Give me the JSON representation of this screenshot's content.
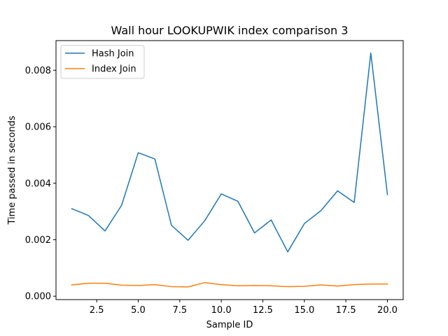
{
  "chart_data": {
    "type": "line",
    "title": "Wall hour LOOKUPWIK index comparison 3",
    "xlabel": "Sample ID",
    "ylabel": "Time passed in seconds",
    "xlim": [
      0.05,
      20.95
    ],
    "ylim": [
      -0.00012,
      0.00905
    ],
    "xticks": [
      2.5,
      5.0,
      7.5,
      10.0,
      12.5,
      15.0,
      17.5,
      20.0
    ],
    "xtick_labels": [
      "2.5",
      "5.0",
      "7.5",
      "10.0",
      "12.5",
      "15.0",
      "17.5",
      "20.0"
    ],
    "yticks": [
      0.0,
      0.002,
      0.004,
      0.006,
      0.008
    ],
    "ytick_labels": [
      "0.000",
      "0.002",
      "0.004",
      "0.006",
      "0.008"
    ],
    "grid": false,
    "legend_position": "top-left",
    "x": [
      1,
      2,
      3,
      4,
      5,
      6,
      7,
      8,
      9,
      10,
      11,
      12,
      13,
      14,
      15,
      16,
      17,
      18,
      19,
      20
    ],
    "series": [
      {
        "name": "Hash Join",
        "color": "#1f77b4",
        "values": [
          0.0031,
          0.00286,
          0.00231,
          0.00322,
          0.00508,
          0.00486,
          0.00251,
          0.00198,
          0.00267,
          0.00362,
          0.00336,
          0.00224,
          0.0027,
          0.00157,
          0.00257,
          0.00303,
          0.00373,
          0.00332,
          0.00861,
          0.0036
        ]
      },
      {
        "name": "Index Join",
        "color": "#ff7f0e",
        "values": [
          0.0004,
          0.00046,
          0.00046,
          0.00039,
          0.00038,
          0.00041,
          0.00034,
          0.00033,
          0.00048,
          0.00041,
          0.00037,
          0.00038,
          0.00037,
          0.00034,
          0.00035,
          0.0004,
          0.00036,
          0.00041,
          0.00043,
          0.00043
        ]
      }
    ]
  }
}
